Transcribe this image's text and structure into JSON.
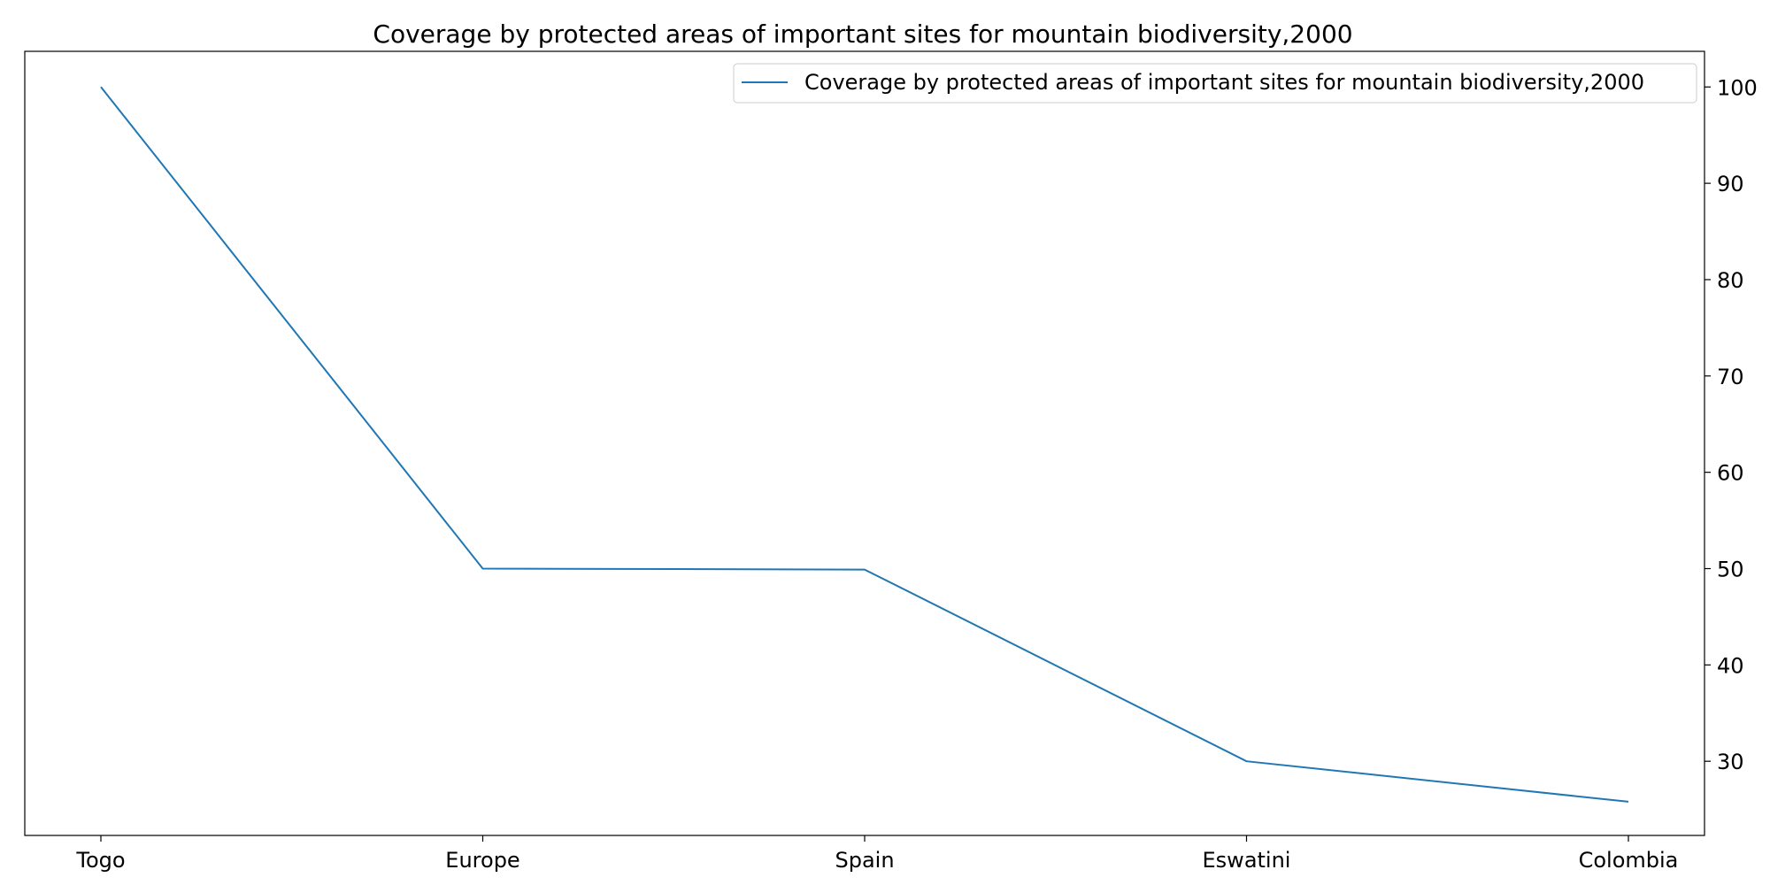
{
  "chart_data": {
    "type": "line",
    "title": "Coverage by protected areas of important sites for mountain biodiversity,2000",
    "xlabel": "",
    "ylabel": "",
    "categories": [
      "Togo",
      "Europe",
      "Spain",
      "Eswatini",
      "Colombia"
    ],
    "series": [
      {
        "name": "Coverage by protected areas of important sites for mountain biodiversity,2000",
        "values": [
          100,
          50.0,
          49.9,
          30.0,
          25.8
        ],
        "color": "#1f77b4"
      }
    ],
    "ylim": [
      22.3,
      103.7
    ],
    "yticks": [
      30,
      40,
      50,
      60,
      70,
      80,
      90,
      100
    ],
    "y_axis_side": "right",
    "grid": false,
    "legend": "top-right"
  }
}
